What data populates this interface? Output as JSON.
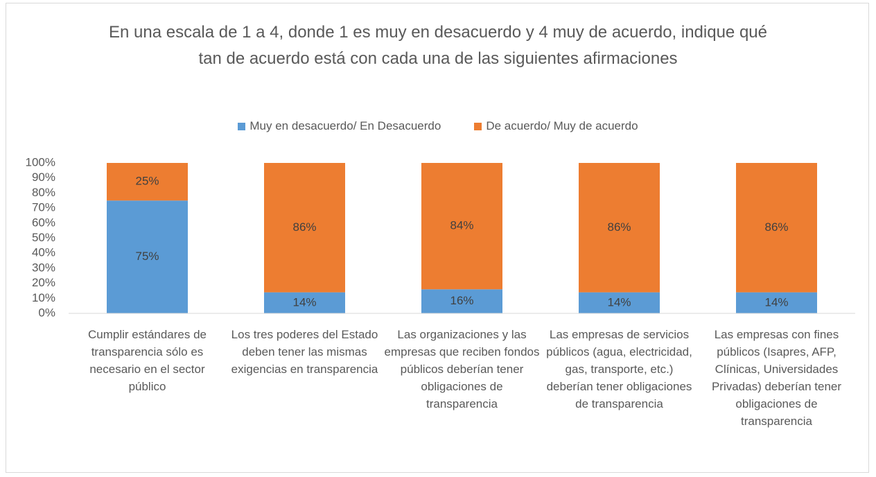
{
  "chart_data": {
    "type": "stacked_bar",
    "title": "En una escala de 1 a 4, donde 1 es muy en desacuerdo y 4 muy de acuerdo, indique qué tan de acuerdo está con cada una de las siguientes afirmaciones",
    "categories": [
      "Cumplir estándares de transparencia sólo es necesario en el sector público",
      "Los tres poderes del Estado deben tener las mismas exigencias en transparencia",
      "Las organizaciones y las empresas que reciben fondos públicos deberían tener obligaciones de transparencia",
      "Las empresas de servicios públicos (agua, electricidad, gas, transporte, etc.) deberían tener obligaciones de transparencia",
      "Las empresas con fines públicos (Isapres, AFP, Clínicas, Universidades Privadas) deberían tener obligaciones de transparencia"
    ],
    "series": [
      {
        "name": "Muy en desacuerdo/ En Desacuerdo",
        "color": "#5b9bd5",
        "values": [
          75,
          14,
          16,
          14,
          14
        ],
        "value_labels": [
          "75%",
          "14%",
          "16%",
          "14%",
          "14%"
        ]
      },
      {
        "name": "De acuerdo/ Muy de acuerdo",
        "color": "#ed7d31",
        "values": [
          25,
          86,
          84,
          86,
          86
        ],
        "value_labels": [
          "25%",
          "86%",
          "84%",
          "86%",
          "86%"
        ]
      }
    ],
    "ylim": [
      0,
      100
    ],
    "yticks": [
      {
        "value": 0,
        "label": "0%"
      },
      {
        "value": 10,
        "label": "10%"
      },
      {
        "value": 20,
        "label": "20%"
      },
      {
        "value": 30,
        "label": "30%"
      },
      {
        "value": 40,
        "label": "40%"
      },
      {
        "value": 50,
        "label": "50%"
      },
      {
        "value": 60,
        "label": "60%"
      },
      {
        "value": 70,
        "label": "70%"
      },
      {
        "value": 80,
        "label": "80%"
      },
      {
        "value": 90,
        "label": "90%"
      },
      {
        "value": 100,
        "label": "100%"
      }
    ],
    "legend": "top",
    "grid": false
  }
}
